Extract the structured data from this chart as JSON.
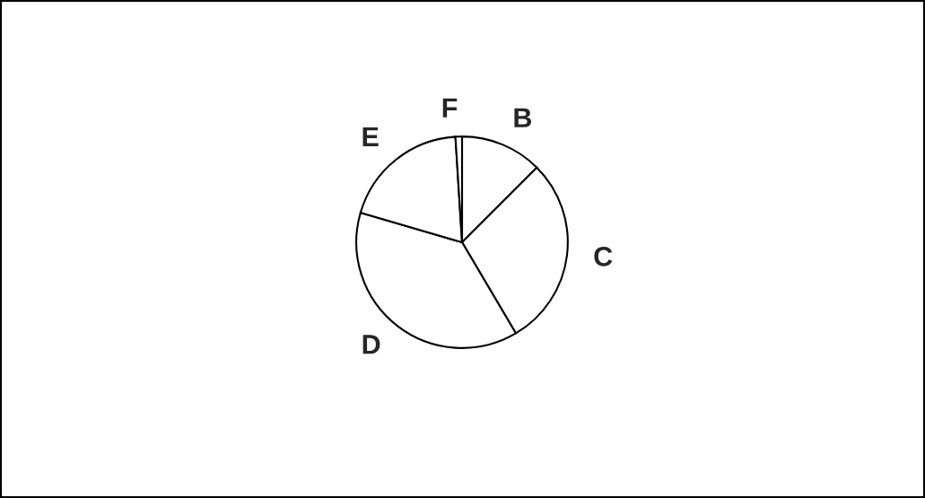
{
  "chart_data": {
    "type": "pie",
    "categories": [
      "B",
      "C",
      "D",
      "E",
      "F"
    ],
    "values": [
      12.5,
      29,
      38,
      19.5,
      1
    ],
    "colors": [
      "#ffffff",
      "#ffffff",
      "#ffffff",
      "#ffffff",
      "#ffffff"
    ]
  }
}
